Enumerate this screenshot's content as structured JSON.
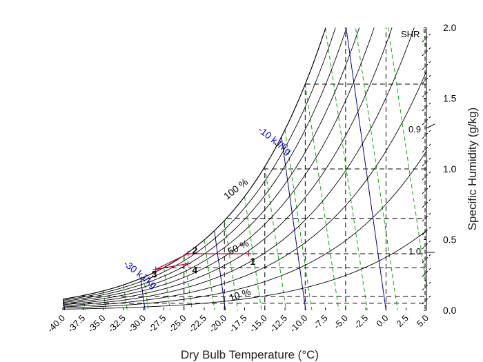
{
  "chart_data": {
    "type": "line",
    "title": "",
    "xlabel": "Dry Bulb Temperature (°C)",
    "ylabel": "Specific Humidity (g/kg)",
    "xlim": [
      -40,
      5
    ],
    "ylim": [
      0,
      2
    ],
    "x_ticks": [
      "-40.0",
      "-37.5",
      "-35.0",
      "-32.5",
      "-30.0",
      "-27.5",
      "-25.0",
      "-22.5",
      "-20.0",
      "-17.5",
      "-15.0",
      "-12.5",
      "-10.0",
      "-7.5",
      "-5.0",
      "-2.5",
      "0.0",
      "2.5",
      "5.0"
    ],
    "y_ticks": [
      "0.0",
      "0.5",
      "1.0",
      "1.5",
      "2.0"
    ],
    "rh_curves_percent": [
      10,
      20,
      30,
      40,
      50,
      60,
      70,
      80,
      90,
      100
    ],
    "enthalpy_lines_kj_per_kg": [
      -40,
      -30,
      -20,
      -10,
      0
    ],
    "enthalpy_labels": [
      "-30 kJ/kg",
      "-10 kJ/kg"
    ],
    "rh_labels": [
      "100 %",
      "50 %",
      "10 %"
    ],
    "shr": {
      "title": "SHR",
      "labels": [
        "0.9",
        "1.0"
      ]
    },
    "process_points": [
      {
        "label": "1",
        "t": -17.0,
        "w": 0.4
      },
      {
        "label": "2",
        "t": -24.5,
        "w": 0.4
      },
      {
        "label": "3",
        "t": -28.5,
        "w": 0.29
      },
      {
        "label": "4",
        "t": -24.5,
        "w": 0.33
      }
    ],
    "process_path": [
      "1",
      "2",
      "3",
      "4"
    ],
    "colors": {
      "rh": "#000000",
      "enthalpy": "#00008b",
      "wet_bulb": "#00aa00",
      "grid": "#000000",
      "process": "#cc0033"
    }
  }
}
